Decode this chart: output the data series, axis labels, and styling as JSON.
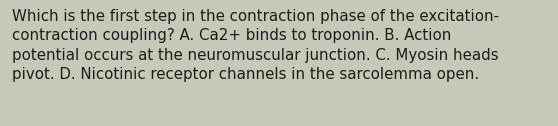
{
  "text": "Which is the first step in the contraction phase of the excitation-\ncontraction coupling? A. Ca2+ binds to troponin. B. Action\npotential occurs at the neuromuscular junction. C. Myosin heads\npivot. D. Nicotinic receptor channels in the sarcolemma open.",
  "background_color": "#c8c8b8",
  "text_color": "#1c1c1c",
  "font_size": 10.8,
  "fig_width": 5.58,
  "fig_height": 1.26,
  "dpi": 100
}
